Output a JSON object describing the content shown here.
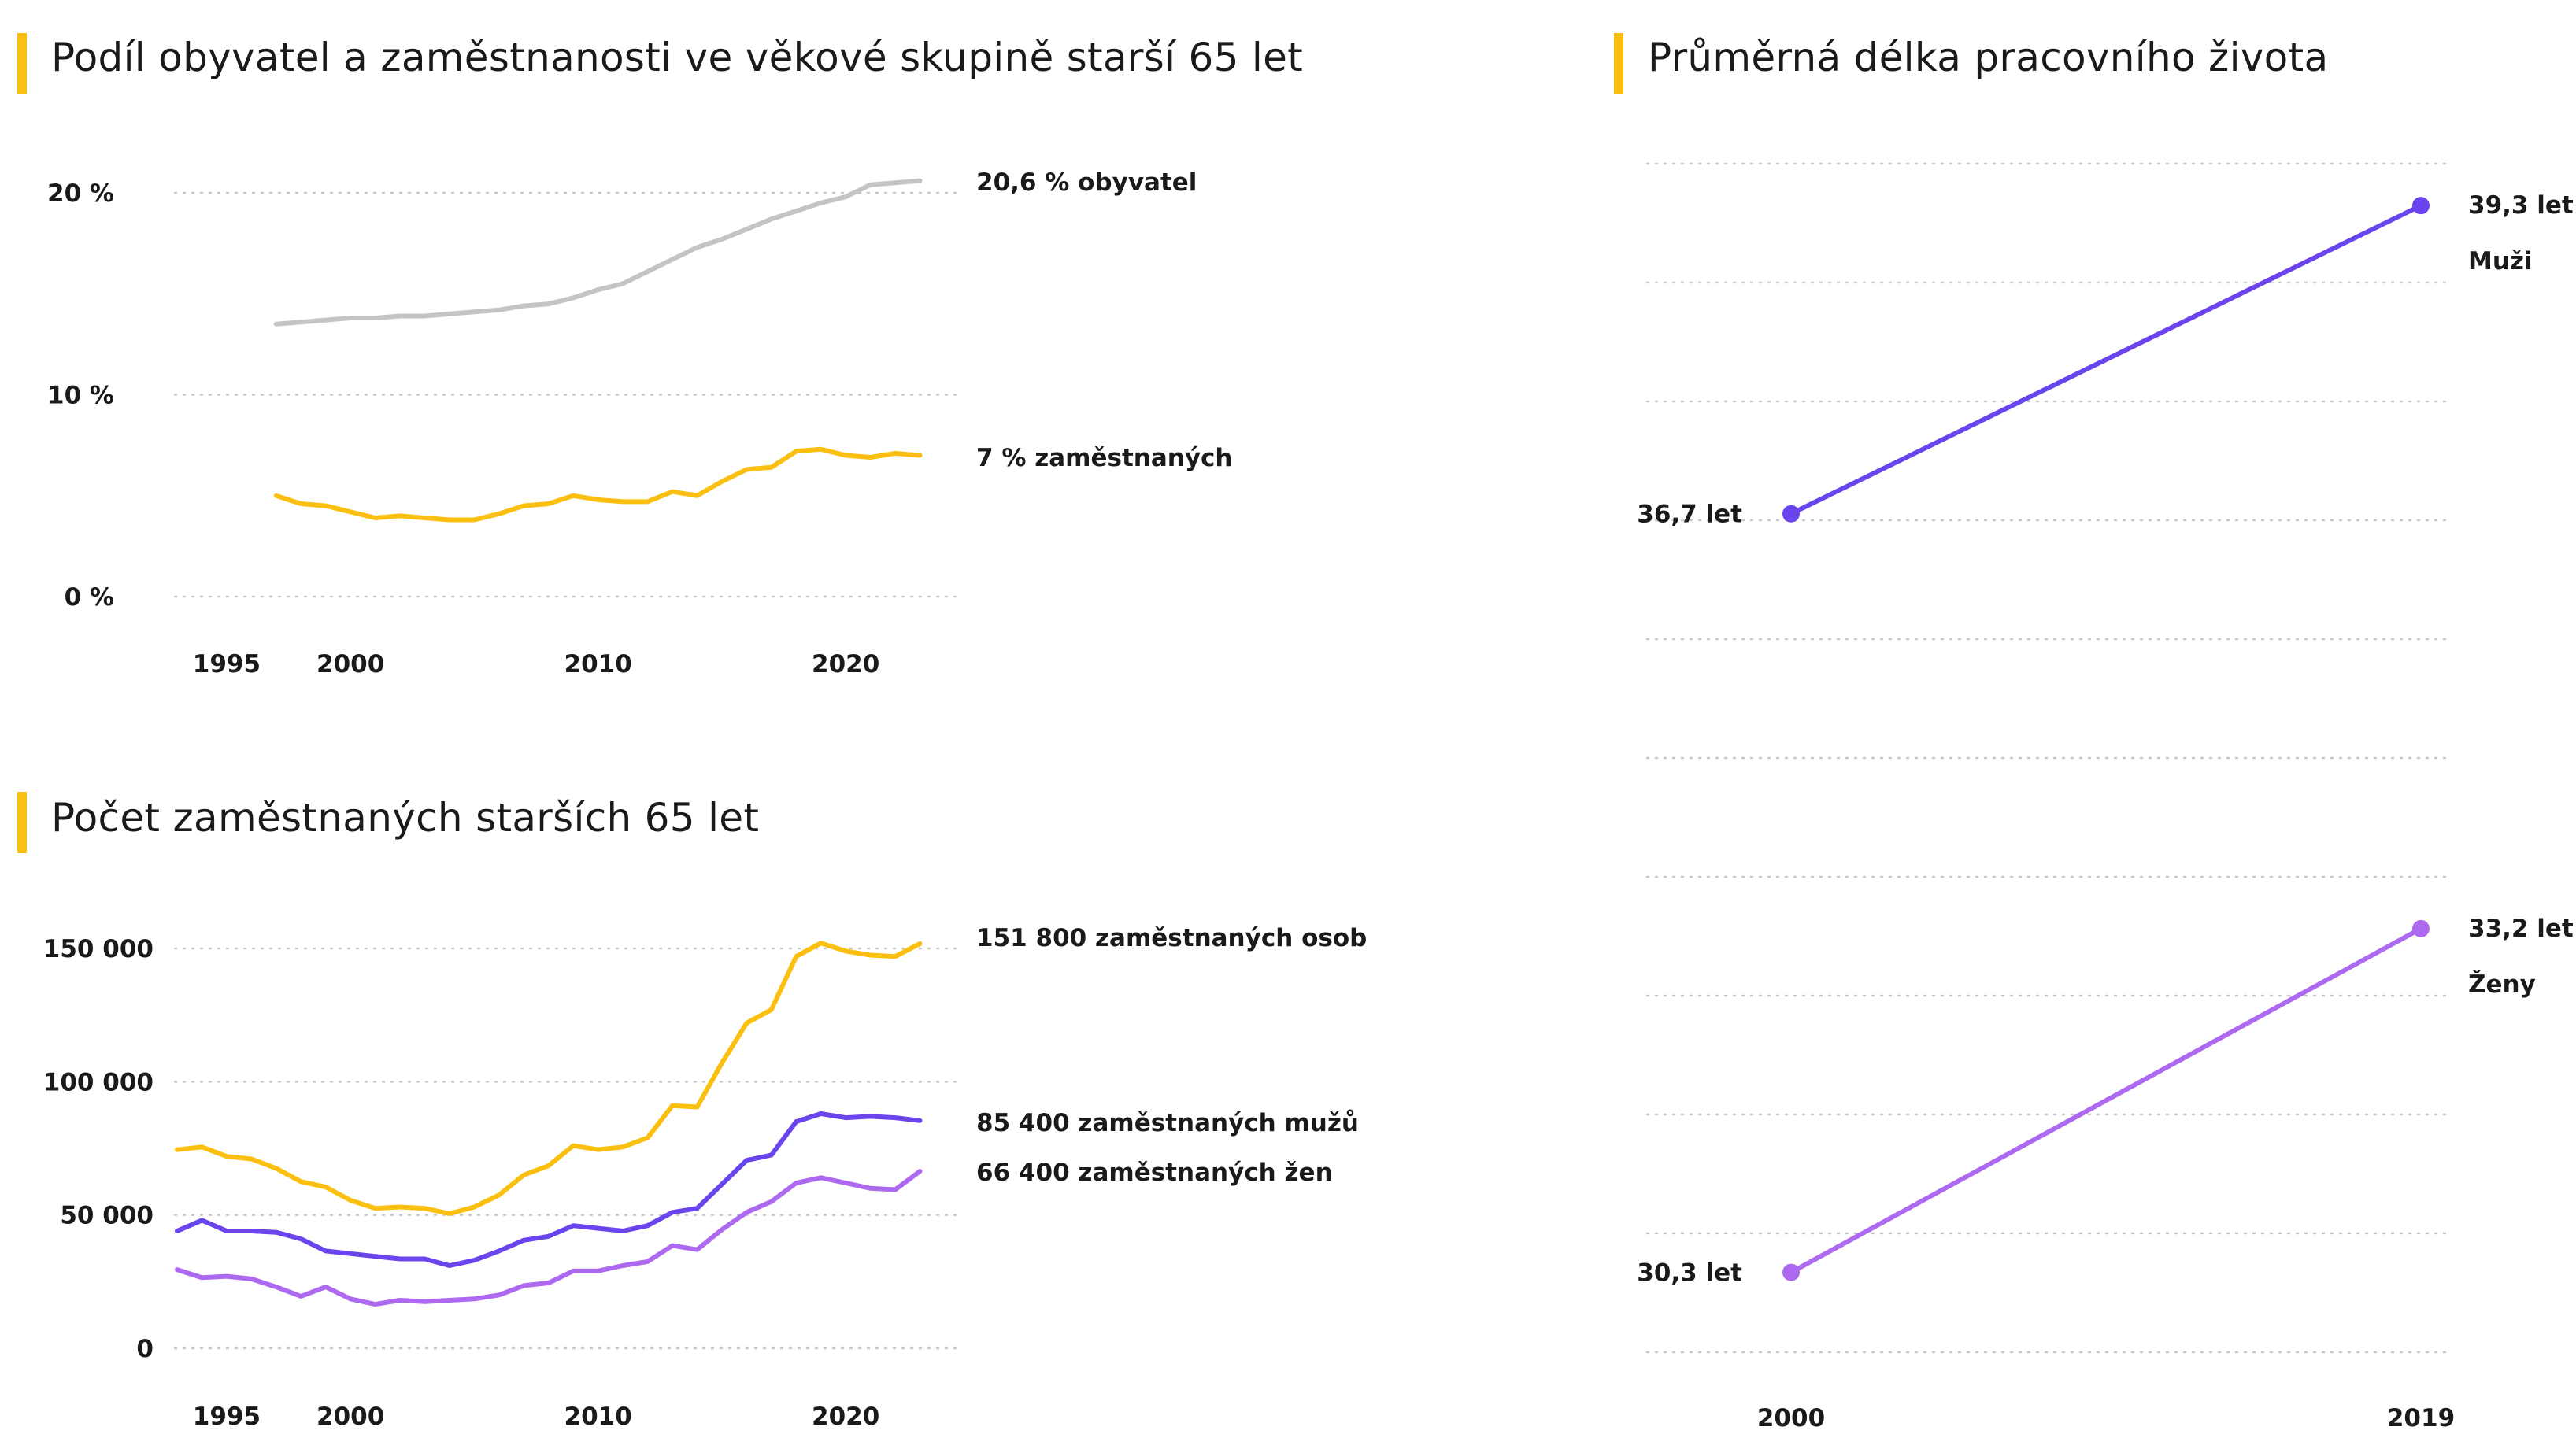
{
  "colors": {
    "accent_bar": "#fbbf0f",
    "population": "#c4c4c4",
    "employment": "#fbbf0f",
    "men": "#6a45ee",
    "women": "#ad6af0",
    "grid": "#c8c8c8"
  },
  "chart_data": [
    {
      "id": "share",
      "type": "line",
      "title": "Podíl obyvatel a zaměstnanosti ve věkové skupině starší 65 let",
      "xlabel": "",
      "ylabel": "",
      "x_ticks": [
        1995,
        2000,
        2010,
        2020
      ],
      "x_tick_labels": [
        "1995",
        "2000",
        "2010",
        "2020"
      ],
      "y_ticks": [
        0,
        10,
        20
      ],
      "y_tick_labels": [
        "0 %",
        "10 %",
        "20 %"
      ],
      "xlim": [
        1993,
        2024
      ],
      "ylim": [
        0,
        20
      ],
      "grid": true,
      "series": [
        {
          "key": "population",
          "end_label": "20,6 % obyvatel",
          "x": [
            1997,
            1998,
            1999,
            2000,
            2001,
            2002,
            2003,
            2004,
            2005,
            2006,
            2007,
            2008,
            2009,
            2010,
            2011,
            2012,
            2013,
            2014,
            2015,
            2016,
            2017,
            2018,
            2019,
            2020,
            2021,
            2022,
            2023
          ],
          "values": [
            13.5,
            13.6,
            13.7,
            13.8,
            13.8,
            13.9,
            13.9,
            14.0,
            14.1,
            14.2,
            14.4,
            14.5,
            14.8,
            15.2,
            15.5,
            16.1,
            16.7,
            17.3,
            17.7,
            18.2,
            18.7,
            19.1,
            19.5,
            19.8,
            20.4,
            20.5,
            20.6
          ]
        },
        {
          "key": "employment",
          "end_label": "7 % zaměstnaných",
          "x": [
            1997,
            1998,
            1999,
            2000,
            2001,
            2002,
            2003,
            2004,
            2005,
            2006,
            2007,
            2008,
            2009,
            2010,
            2011,
            2012,
            2013,
            2014,
            2015,
            2016,
            2017,
            2018,
            2019,
            2020,
            2021,
            2022,
            2023
          ],
          "values": [
            5.0,
            4.6,
            4.5,
            4.2,
            3.9,
            4.0,
            3.9,
            3.8,
            3.8,
            4.1,
            4.5,
            4.6,
            5.0,
            4.8,
            4.7,
            4.7,
            5.2,
            5.0,
            5.7,
            6.3,
            6.4,
            7.2,
            7.3,
            7.0,
            6.9,
            7.1,
            7.0
          ]
        }
      ]
    },
    {
      "id": "count",
      "type": "line",
      "title": "Počet zaměstnaných starších 65 let",
      "xlabel": "",
      "ylabel": "",
      "x_ticks": [
        1995,
        2000,
        2010,
        2020
      ],
      "x_tick_labels": [
        "1995",
        "2000",
        "2010",
        "2020"
      ],
      "y_ticks": [
        0,
        50000,
        100000,
        150000
      ],
      "y_tick_labels": [
        "0",
        "50 000",
        "100 000",
        "150 000"
      ],
      "xlim": [
        1993,
        2024
      ],
      "ylim": [
        0,
        150000
      ],
      "grid": true,
      "series": [
        {
          "key": "employment",
          "end_label": "151 800 zaměstnaných osob",
          "x": [
            1993,
            1994,
            1995,
            1996,
            1997,
            1998,
            1999,
            2000,
            2001,
            2002,
            2003,
            2004,
            2005,
            2006,
            2007,
            2008,
            2009,
            2010,
            2011,
            2012,
            2013,
            2014,
            2015,
            2016,
            2017,
            2018,
            2019,
            2020,
            2021,
            2022,
            2023
          ],
          "values": [
            74500,
            75500,
            72000,
            71000,
            67500,
            62500,
            60500,
            55500,
            52500,
            53000,
            52500,
            50500,
            53000,
            57500,
            65000,
            68500,
            76000,
            74500,
            75500,
            79000,
            91000,
            90500,
            107000,
            122000,
            127000,
            147000,
            152000,
            149000,
            147500,
            147000,
            151800
          ]
        },
        {
          "key": "men",
          "end_label": "85 400 zaměstnaných mužů",
          "x": [
            1993,
            1994,
            1995,
            1996,
            1997,
            1998,
            1999,
            2000,
            2001,
            2002,
            2003,
            2004,
            2005,
            2006,
            2007,
            2008,
            2009,
            2010,
            2011,
            2012,
            2013,
            2014,
            2015,
            2016,
            2017,
            2018,
            2019,
            2020,
            2021,
            2022,
            2023
          ],
          "values": [
            44000,
            48000,
            44000,
            44000,
            43500,
            41000,
            36500,
            35500,
            34500,
            33500,
            33500,
            31000,
            33000,
            36500,
            40500,
            42000,
            46000,
            45000,
            44000,
            46000,
            51000,
            52500,
            61500,
            70500,
            72500,
            85000,
            88000,
            86500,
            87000,
            86500,
            85400
          ]
        },
        {
          "key": "women",
          "end_label": "66 400 zaměstnaných žen",
          "x": [
            1993,
            1994,
            1995,
            1996,
            1997,
            1998,
            1999,
            2000,
            2001,
            2002,
            2003,
            2004,
            2005,
            2006,
            2007,
            2008,
            2009,
            2010,
            2011,
            2012,
            2013,
            2014,
            2015,
            2016,
            2017,
            2018,
            2019,
            2020,
            2021,
            2022,
            2023
          ],
          "values": [
            29500,
            26500,
            27000,
            26000,
            23000,
            19500,
            23000,
            18500,
            16500,
            18000,
            17500,
            18000,
            18500,
            20000,
            23500,
            24500,
            29000,
            29000,
            31000,
            32500,
            38500,
            37000,
            44500,
            51000,
            55000,
            62000,
            64000,
            62000,
            60000,
            59500,
            66400
          ]
        }
      ]
    },
    {
      "id": "working-life",
      "type": "line",
      "title": "Průměrná délka pracovního života",
      "xlabel": "",
      "ylabel": "",
      "x_ticks": [
        2000,
        2019
      ],
      "x_tick_labels": [
        "2000",
        "2019"
      ],
      "xlim": [
        2000,
        2019
      ],
      "ylim": [
        29.6,
        39.6
      ],
      "grid": true,
      "series": [
        {
          "key": "men",
          "name": "Muži",
          "x": [
            2000,
            2019
          ],
          "values": [
            36.7,
            39.3
          ],
          "value_labels": [
            "36,7 let",
            "39,3 let"
          ]
        },
        {
          "key": "women",
          "name": "Ženy",
          "x": [
            2000,
            2019
          ],
          "values": [
            30.3,
            33.2
          ],
          "value_labels": [
            "30,3 let",
            "33,2 let"
          ]
        }
      ]
    }
  ]
}
